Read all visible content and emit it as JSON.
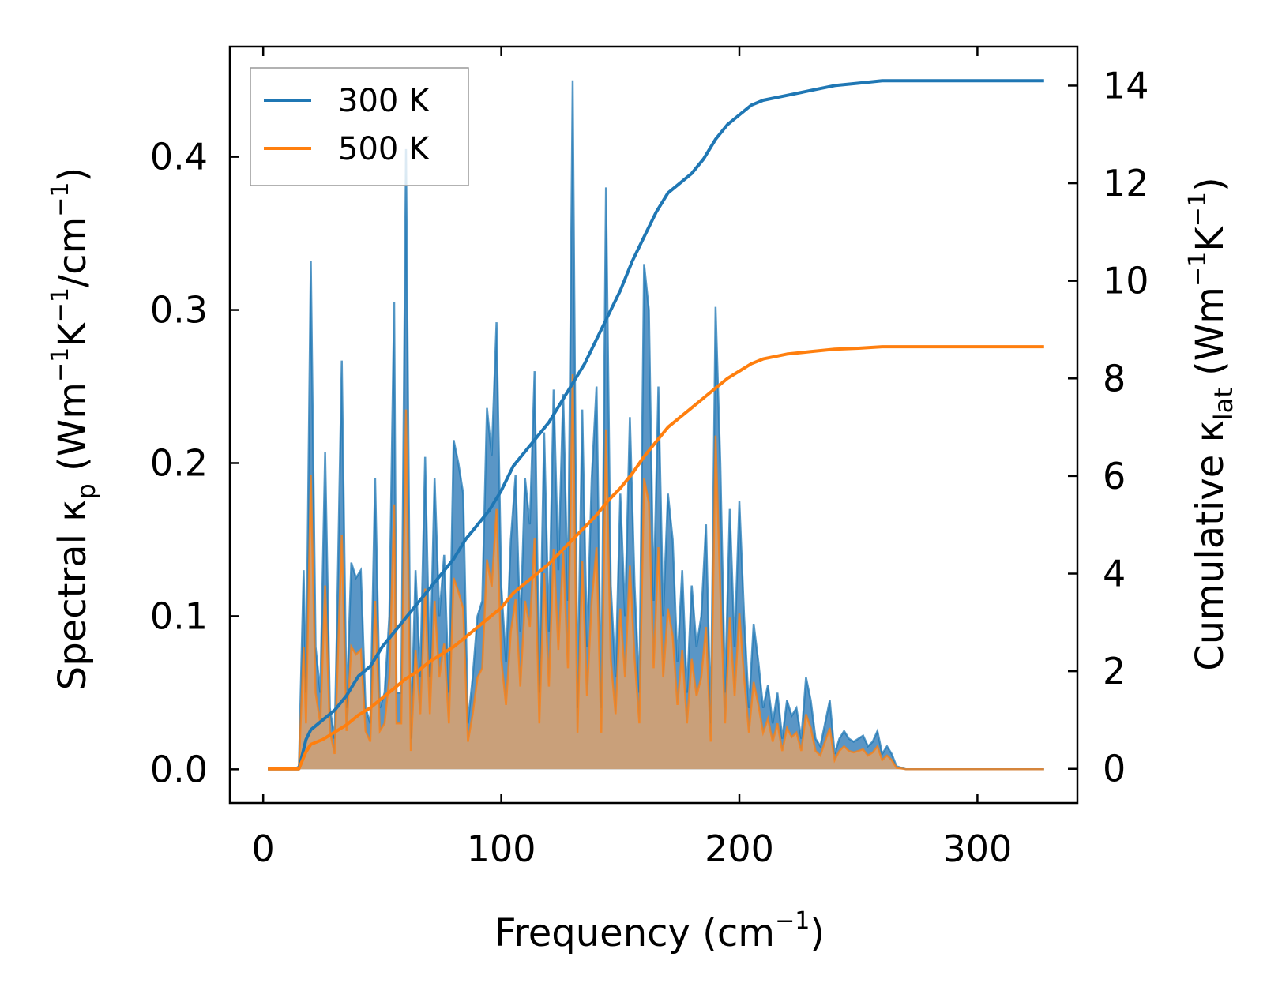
{
  "chart_data": {
    "type": "line",
    "title": "",
    "xlabel": {
      "main": "Frequency (cm",
      "sup": "−1",
      "end": ")"
    },
    "ylabel_left": {
      "a": "Spectral κ",
      "sub": "p",
      "b": " (Wm",
      "sup1": "−1",
      "c": "K",
      "sup2": "−1",
      "d": "/cm",
      "sup3": "−1",
      "e": ")"
    },
    "ylabel_right": {
      "a": "Cumulative κ",
      "sub": "lat",
      "b": " (Wm",
      "sup1": "−1",
      "c": "K",
      "sup2": "−1",
      "d": ")"
    },
    "xlim": [
      -14,
      342
    ],
    "ylim_left": [
      -0.022,
      0.472
    ],
    "ylim_right": [
      -0.7,
      14.8
    ],
    "xticks": [
      0,
      100,
      200,
      300
    ],
    "yticks_left": [
      0.0,
      0.1,
      0.2,
      0.3,
      0.4
    ],
    "yticks_left_labels": [
      "0.0",
      "0.1",
      "0.2",
      "0.3",
      "0.4"
    ],
    "yticks_right": [
      0,
      2,
      4,
      6,
      8,
      10,
      12,
      14
    ],
    "yticks_right_labels": [
      "0",
      "2",
      "4",
      "6",
      "8",
      "10",
      "12",
      "14"
    ],
    "legend": {
      "position": "top-left",
      "entries": [
        "300 K",
        "500 K"
      ]
    },
    "colors": {
      "300K": "#1f77b4",
      "500K": "#ff7f0e",
      "fill300": "#5a96c6",
      "fill500": "#c9a07a"
    },
    "series_spectral": [
      {
        "name": "300 K",
        "x": [
          2,
          13,
          15,
          17,
          18,
          20,
          22,
          24,
          26,
          28,
          30,
          31,
          33,
          35,
          37,
          39,
          41,
          43,
          45,
          47,
          49,
          51,
          53,
          55,
          56,
          58,
          60,
          62,
          64,
          66,
          68,
          70,
          72,
          74,
          76,
          78,
          80,
          82,
          84,
          86,
          88,
          90,
          92,
          94,
          96,
          98,
          100,
          102,
          104,
          106,
          108,
          110,
          112,
          114,
          116,
          118,
          120,
          122,
          124,
          126,
          128,
          130,
          132,
          134,
          136,
          138,
          140,
          142,
          144,
          146,
          148,
          150,
          152,
          154,
          156,
          158,
          160,
          162,
          164,
          166,
          168,
          170,
          172,
          174,
          176,
          178,
          180,
          182,
          184,
          186,
          188,
          190,
          192,
          194,
          196,
          198,
          200,
          202,
          204,
          206,
          208,
          210,
          212,
          214,
          216,
          218,
          220,
          222,
          224,
          226,
          228,
          230,
          232,
          234,
          236,
          238,
          240,
          242,
          244,
          246,
          248,
          250,
          252,
          254,
          256,
          258,
          260,
          262,
          264,
          266,
          270,
          328
        ],
        "values": [
          0.0,
          0.0,
          0.002,
          0.13,
          0.05,
          0.332,
          0.08,
          0.05,
          0.207,
          0.04,
          0.02,
          0.095,
          0.267,
          0.04,
          0.135,
          0.125,
          0.13,
          0.04,
          0.03,
          0.19,
          0.04,
          0.05,
          0.1,
          0.305,
          0.05,
          0.05,
          0.405,
          0.02,
          0.13,
          0.06,
          0.204,
          0.06,
          0.19,
          0.1,
          0.14,
          0.05,
          0.215,
          0.2,
          0.18,
          0.03,
          0.06,
          0.1,
          0.11,
          0.236,
          0.205,
          0.292,
          0.12,
          0.07,
          0.15,
          0.192,
          0.09,
          0.19,
          0.16,
          0.26,
          0.05,
          0.22,
          0.09,
          0.248,
          0.13,
          0.245,
          0.11,
          0.45,
          0.04,
          0.235,
          0.08,
          0.19,
          0.25,
          0.04,
          0.38,
          0.12,
          0.06,
          0.18,
          0.1,
          0.23,
          0.12,
          0.05,
          0.33,
          0.3,
          0.11,
          0.25,
          0.1,
          0.18,
          0.15,
          0.07,
          0.13,
          0.05,
          0.12,
          0.08,
          0.1,
          0.16,
          0.03,
          0.302,
          0.2,
          0.05,
          0.17,
          0.08,
          0.175,
          0.1,
          0.04,
          0.095,
          0.07,
          0.04,
          0.055,
          0.03,
          0.05,
          0.02,
          0.045,
          0.035,
          0.04,
          0.02,
          0.06,
          0.045,
          0.02,
          0.015,
          0.03,
          0.045,
          0.01,
          0.02,
          0.025,
          0.02,
          0.018,
          0.02,
          0.022,
          0.015,
          0.018,
          0.025,
          0.01,
          0.015,
          0.01,
          0.002,
          0.0,
          0.0
        ]
      },
      {
        "name": "500 K",
        "x": [
          2,
          13,
          15,
          17,
          18,
          20,
          22,
          24,
          26,
          28,
          30,
          31,
          33,
          35,
          37,
          39,
          41,
          43,
          45,
          47,
          49,
          51,
          53,
          55,
          56,
          58,
          60,
          62,
          64,
          66,
          68,
          70,
          72,
          74,
          76,
          78,
          80,
          82,
          84,
          86,
          88,
          90,
          92,
          94,
          96,
          98,
          100,
          102,
          104,
          106,
          108,
          110,
          112,
          114,
          116,
          118,
          120,
          122,
          124,
          126,
          128,
          130,
          132,
          134,
          136,
          138,
          140,
          142,
          144,
          146,
          148,
          150,
          152,
          154,
          156,
          158,
          160,
          162,
          164,
          166,
          168,
          170,
          172,
          174,
          176,
          178,
          180,
          182,
          184,
          186,
          188,
          190,
          192,
          194,
          196,
          198,
          200,
          202,
          204,
          206,
          208,
          210,
          212,
          214,
          216,
          218,
          220,
          222,
          224,
          226,
          228,
          230,
          232,
          234,
          236,
          238,
          240,
          242,
          244,
          246,
          248,
          250,
          252,
          254,
          256,
          258,
          260,
          262,
          264,
          266,
          270,
          328
        ],
        "values": [
          0.0,
          0.0,
          0.001,
          0.08,
          0.03,
          0.192,
          0.05,
          0.03,
          0.12,
          0.025,
          0.01,
          0.055,
          0.153,
          0.025,
          0.08,
          0.075,
          0.078,
          0.025,
          0.018,
          0.11,
          0.025,
          0.03,
          0.06,
          0.173,
          0.03,
          0.03,
          0.235,
          0.012,
          0.078,
          0.036,
          0.118,
          0.036,
          0.11,
          0.06,
          0.082,
          0.03,
          0.125,
          0.116,
          0.105,
          0.018,
          0.036,
          0.06,
          0.066,
          0.137,
          0.119,
          0.17,
          0.072,
          0.042,
          0.09,
          0.111,
          0.054,
          0.11,
          0.093,
          0.151,
          0.03,
          0.128,
          0.054,
          0.144,
          0.078,
          0.142,
          0.066,
          0.258,
          0.024,
          0.136,
          0.048,
          0.11,
          0.145,
          0.024,
          0.222,
          0.072,
          0.036,
          0.105,
          0.06,
          0.133,
          0.072,
          0.03,
          0.19,
          0.174,
          0.066,
          0.145,
          0.06,
          0.105,
          0.087,
          0.042,
          0.078,
          0.03,
          0.072,
          0.048,
          0.06,
          0.093,
          0.018,
          0.218,
          0.116,
          0.03,
          0.099,
          0.048,
          0.102,
          0.06,
          0.024,
          0.057,
          0.042,
          0.024,
          0.033,
          0.018,
          0.03,
          0.012,
          0.027,
          0.021,
          0.024,
          0.012,
          0.036,
          0.027,
          0.012,
          0.009,
          0.018,
          0.027,
          0.006,
          0.012,
          0.015,
          0.012,
          0.011,
          0.012,
          0.013,
          0.009,
          0.011,
          0.015,
          0.006,
          0.009,
          0.006,
          0.001,
          0.0,
          0.0
        ]
      }
    ],
    "series_cumulative": [
      {
        "name": "300 K",
        "x": [
          2,
          15,
          18,
          20,
          25,
          30,
          35,
          40,
          45,
          50,
          55,
          60,
          65,
          70,
          75,
          80,
          85,
          90,
          95,
          100,
          105,
          110,
          115,
          120,
          125,
          130,
          135,
          140,
          145,
          150,
          155,
          160,
          165,
          170,
          175,
          180,
          185,
          190,
          195,
          200,
          205,
          210,
          220,
          230,
          240,
          250,
          260,
          270,
          328
        ],
        "values": [
          0,
          0,
          0.6,
          0.8,
          1.0,
          1.2,
          1.5,
          1.9,
          2.1,
          2.5,
          2.8,
          3.1,
          3.4,
          3.7,
          4.0,
          4.3,
          4.7,
          5.0,
          5.3,
          5.7,
          6.2,
          6.5,
          6.8,
          7.1,
          7.5,
          7.9,
          8.3,
          8.8,
          9.3,
          9.8,
          10.4,
          10.9,
          11.4,
          11.8,
          12.0,
          12.2,
          12.5,
          12.9,
          13.2,
          13.4,
          13.6,
          13.7,
          13.8,
          13.9,
          14.0,
          14.05,
          14.1,
          14.1,
          14.1
        ]
      },
      {
        "name": "500 K",
        "x": [
          2,
          15,
          18,
          20,
          25,
          30,
          35,
          40,
          45,
          50,
          55,
          60,
          65,
          70,
          75,
          80,
          85,
          90,
          95,
          100,
          105,
          110,
          115,
          120,
          125,
          130,
          135,
          140,
          145,
          150,
          155,
          160,
          165,
          170,
          175,
          180,
          185,
          190,
          195,
          200,
          205,
          210,
          220,
          230,
          240,
          250,
          260,
          270,
          328
        ],
        "values": [
          0,
          0,
          0.35,
          0.5,
          0.6,
          0.75,
          0.9,
          1.1,
          1.25,
          1.45,
          1.65,
          1.85,
          2.0,
          2.2,
          2.35,
          2.5,
          2.7,
          2.9,
          3.1,
          3.3,
          3.6,
          3.8,
          4.0,
          4.2,
          4.45,
          4.7,
          4.95,
          5.2,
          5.5,
          5.75,
          6.05,
          6.4,
          6.7,
          7.0,
          7.2,
          7.4,
          7.6,
          7.8,
          8.0,
          8.15,
          8.3,
          8.4,
          8.5,
          8.55,
          8.6,
          8.62,
          8.65,
          8.65,
          8.65
        ]
      }
    ]
  }
}
